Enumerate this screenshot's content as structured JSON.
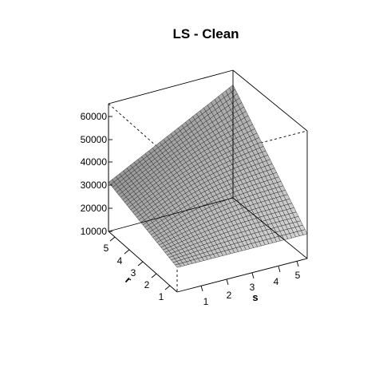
{
  "chart_data": {
    "type": "surface",
    "title": "LS - Clean",
    "xlabel": "s",
    "ylabel": "r",
    "zlabel": "",
    "xlim": [
      0.5,
      5.5
    ],
    "ylim": [
      0.5,
      5.5
    ],
    "zlim": [
      10000,
      62000
    ],
    "x_ticks": [
      1,
      2,
      3,
      4,
      5
    ],
    "y_ticks": [
      1,
      2,
      3,
      4,
      5
    ],
    "z_ticks": [
      10000,
      20000,
      30000,
      40000,
      50000,
      60000
    ],
    "x_tick_labels": [
      "1",
      "2",
      "3",
      "4",
      "5"
    ],
    "y_tick_labels": [
      "1",
      "2",
      "3",
      "4",
      "5"
    ],
    "z_tick_labels": [
      "10000",
      "20000",
      "30000",
      "40000",
      "50000",
      "60000"
    ],
    "corner_values": {
      "s_min_r_min": 20000,
      "s_max_r_min": 20000,
      "s_min_r_max": 30000,
      "s_max_r_max": 56000
    },
    "surface_fill": "#bfbfbf"
  }
}
